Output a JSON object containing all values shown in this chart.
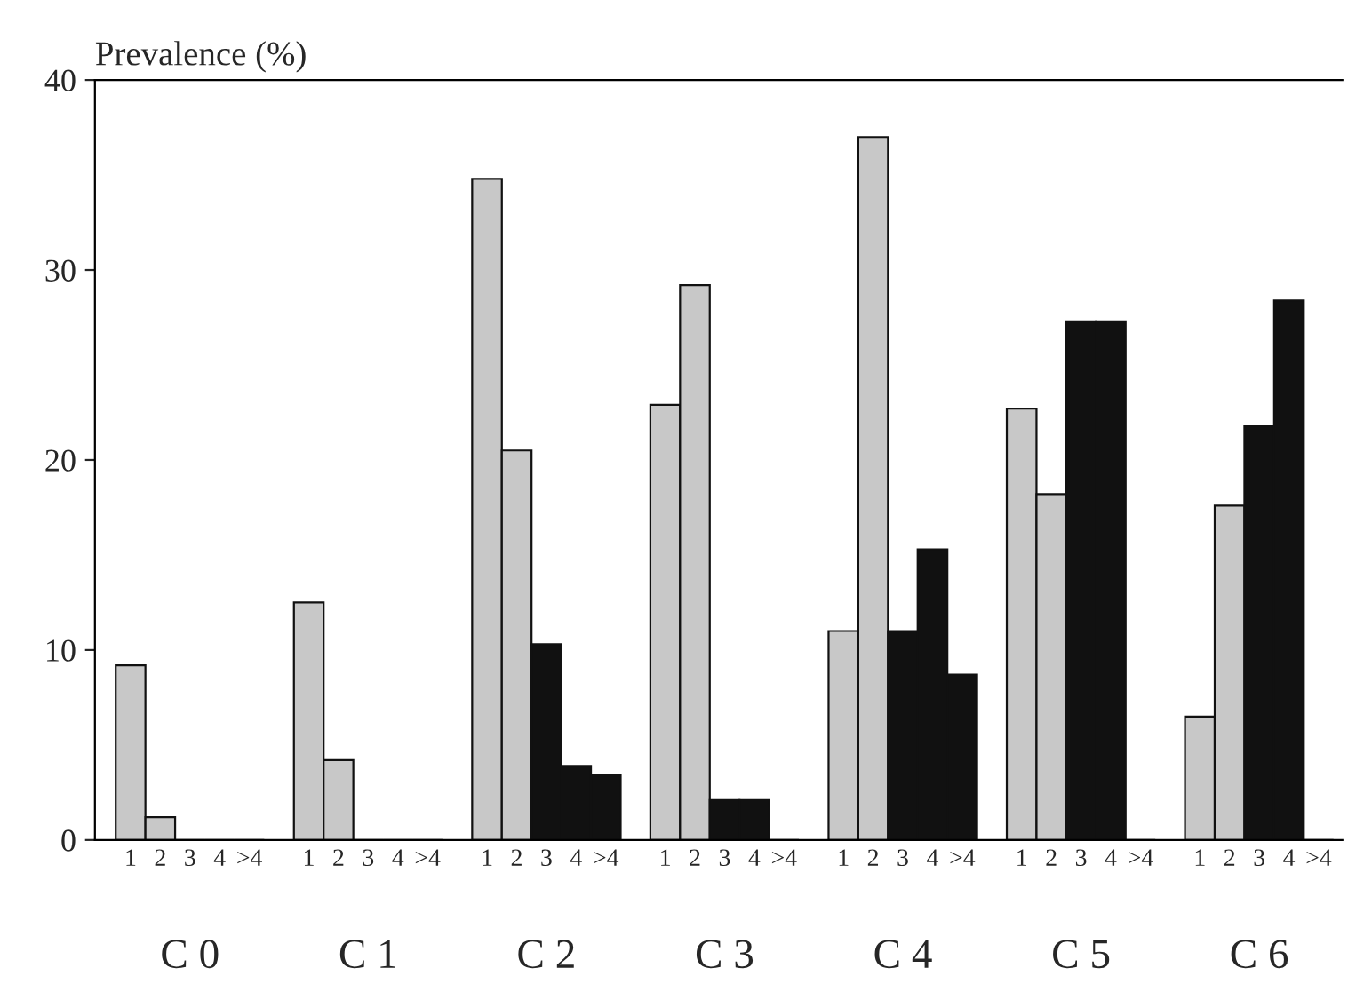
{
  "chart_data": {
    "type": "bar",
    "ylabel": "Prevalence (%)",
    "categories": [
      "1",
      "2",
      "3",
      "4",
      ">4",
      null,
      "1",
      "2",
      "3",
      "4",
      ">4",
      null,
      "1",
      "2",
      "3",
      "4",
      ">4",
      null,
      "1",
      "2",
      "3",
      "4",
      ">4",
      null,
      "1",
      "2",
      "3",
      "4",
      ">4",
      null,
      "1",
      "2",
      "3",
      "4",
      ">4",
      null,
      "1",
      "2",
      "3",
      "4",
      ">4"
    ],
    "values": [
      9.2,
      1.2,
      0,
      0,
      0,
      null,
      12.5,
      4.2,
      0,
      0,
      0,
      null,
      34.8,
      20.5,
      10.3,
      3.9,
      3.4,
      null,
      22.9,
      29.2,
      2.1,
      2.1,
      0,
      null,
      11.0,
      37.0,
      11.0,
      15.3,
      8.7,
      null,
      22.7,
      18.2,
      27.3,
      27.3,
      0,
      null,
      6.5,
      17.6,
      21.8,
      28.4,
      0
    ],
    "colors": [
      "#c8c8c8",
      "#c8c8c8",
      "#111111",
      "#111111",
      "#111111",
      null,
      "#c8c8c8",
      "#c8c8c8",
      "#111111",
      "#111111",
      "#111111",
      null,
      "#c8c8c8",
      "#c8c8c8",
      "#111111",
      "#111111",
      "#111111",
      null,
      "#c8c8c8",
      "#c8c8c8",
      "#111111",
      "#111111",
      "#111111",
      null,
      "#c8c8c8",
      "#c8c8c8",
      "#111111",
      "#111111",
      "#111111",
      null,
      "#c8c8c8",
      "#c8c8c8",
      "#111111",
      "#111111",
      "#111111",
      null,
      "#c8c8c8",
      "#c8c8c8",
      "#111111",
      "#111111",
      "#111111"
    ],
    "annotations": [
      "C 0",
      "C 1",
      "C 2",
      "C 3",
      "C 4",
      "C 5",
      "C 6"
    ],
    "ylim": [
      0,
      40
    ],
    "yticks": [
      0,
      10,
      20,
      30,
      40
    ],
    "grid": false,
    "legend": false
  }
}
